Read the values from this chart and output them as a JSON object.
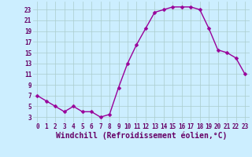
{
  "x": [
    0,
    1,
    2,
    3,
    4,
    5,
    6,
    7,
    8,
    9,
    10,
    11,
    12,
    13,
    14,
    15,
    16,
    17,
    18,
    19,
    20,
    21,
    22,
    23
  ],
  "y": [
    7,
    6,
    5,
    4,
    5,
    4,
    4,
    3,
    3.5,
    8.5,
    13,
    16.5,
    19.5,
    22.5,
    23,
    23.5,
    23.5,
    23.5,
    23,
    19.5,
    15.5,
    15,
    14,
    11
  ],
  "line_color": "#990099",
  "marker_color": "#990099",
  "bg_color": "#cceeff",
  "grid_color": "#aacccc",
  "xlabel": "Windchill (Refroidissement éolien,°C)",
  "yticks": [
    3,
    5,
    7,
    9,
    11,
    13,
    15,
    17,
    19,
    21,
    23
  ],
  "xticks": [
    0,
    1,
    2,
    3,
    4,
    5,
    6,
    7,
    8,
    9,
    10,
    11,
    12,
    13,
    14,
    15,
    16,
    17,
    18,
    19,
    20,
    21,
    22,
    23
  ],
  "ylim": [
    2.0,
    24.5
  ],
  "xlim": [
    -0.5,
    23.5
  ],
  "xlabel_fontsize": 7,
  "tick_fontsize": 5.5,
  "line_width": 1.0,
  "marker_size": 2.5
}
